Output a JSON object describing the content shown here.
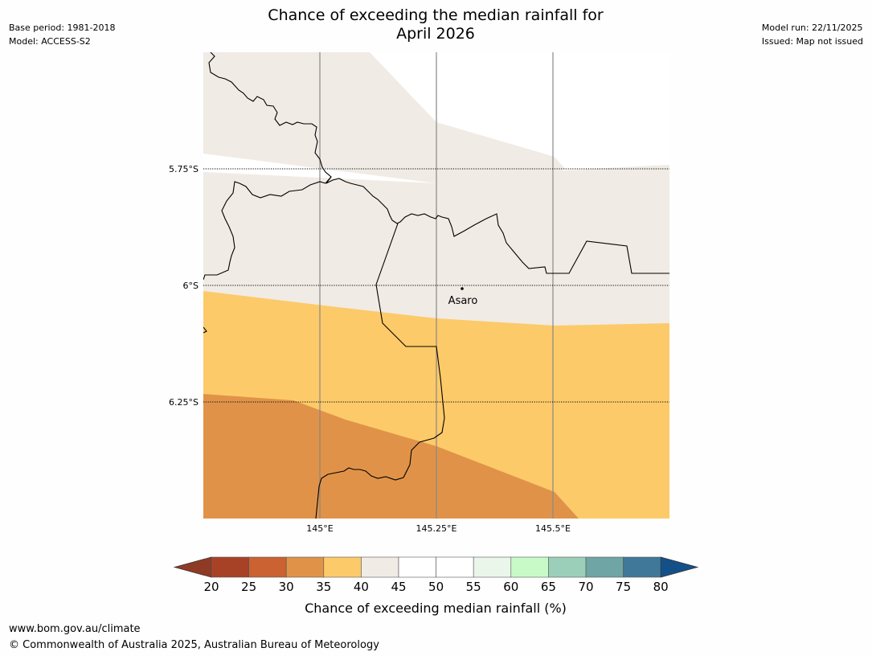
{
  "header": {
    "title_line1": "Chance of exceeding the median rainfall for",
    "title_line2": "April 2026",
    "base_period": "Base period: 1981-2018",
    "model": "Model: ACCESS-S2",
    "model_run": "Model run: 22/11/2025",
    "issued": "Issued: Map not issued"
  },
  "map": {
    "lat_labels": [
      "5.75°S",
      "6°S",
      "6.25°S"
    ],
    "lon_labels": [
      "145°E",
      "145.25°E",
      "145.5°E"
    ],
    "place": {
      "name": "Asaro",
      "icon": "dot-marker-icon"
    },
    "colors": {
      "band_40_45": "#f0ebe5",
      "band_35_40": "#fdca69",
      "band_30_35": "#e09348",
      "land_border": "#000000",
      "meridian": "#888888"
    }
  },
  "legend": {
    "label": "Chance of exceeding median rainfall (%)",
    "ticks": [
      "20",
      "25",
      "30",
      "35",
      "40",
      "45",
      "50",
      "55",
      "60",
      "65",
      "70",
      "75",
      "80"
    ],
    "colors": [
      "#a84226",
      "#ca6231",
      "#e09348",
      "#fdca69",
      "#f0ebe5",
      "#ffffff",
      "#ffffff",
      "#eaf6ea",
      "#c8fac8",
      "#9ccfb9",
      "#6fa5a5",
      "#3f7899"
    ],
    "under_color": "#8f3a25",
    "over_color": "#145088"
  },
  "footer": {
    "url": "www.bom.gov.au/climate",
    "copyright": "© Commonwealth of Australia 2025, Australian Bureau of Meteorology"
  }
}
